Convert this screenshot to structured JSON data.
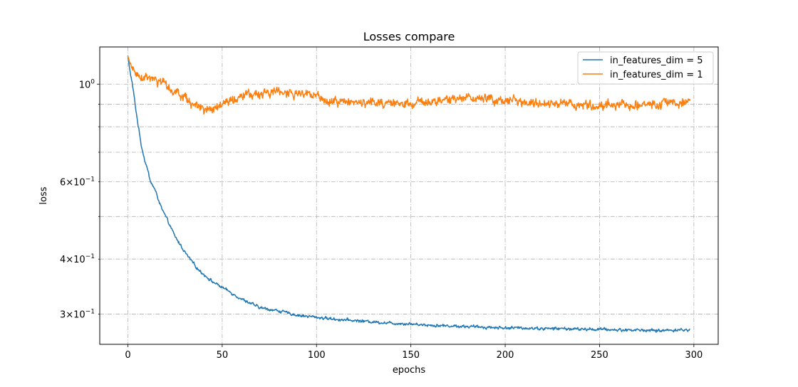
{
  "chart_data": {
    "type": "line",
    "title": "Losses compare",
    "xlabel": "epochs",
    "ylabel": "loss",
    "xlim": [
      -14.9,
      312.9
    ],
    "ylim": [
      0.256,
      1.215
    ],
    "yscale": "log",
    "grid": true,
    "legend_position": "top-right",
    "x_ticks": [
      {
        "value": 0,
        "label": "0"
      },
      {
        "value": 50,
        "label": "50"
      },
      {
        "value": 100,
        "label": "100"
      },
      {
        "value": 150,
        "label": "150"
      },
      {
        "value": 200,
        "label": "200"
      },
      {
        "value": 250,
        "label": "250"
      },
      {
        "value": 300,
        "label": "300"
      }
    ],
    "y_major_ticks": [
      {
        "value": 1.0,
        "base": "10",
        "exp": "0"
      }
    ],
    "y_minor_ticks": [
      {
        "value": 0.3,
        "mant": "3",
        "base": "10",
        "exp": "−1"
      },
      {
        "value": 0.4,
        "mant": "4",
        "base": "10",
        "exp": "−1"
      },
      {
        "value": 0.5,
        "mant": "",
        "base": "",
        "exp": ""
      },
      {
        "value": 0.6,
        "mant": "6",
        "base": "10",
        "exp": "−1"
      },
      {
        "value": 0.7,
        "mant": "",
        "base": "",
        "exp": ""
      },
      {
        "value": 0.8,
        "mant": "",
        "base": "",
        "exp": ""
      },
      {
        "value": 0.9,
        "mant": "",
        "base": "",
        "exp": ""
      }
    ],
    "series": [
      {
        "name": "in_features_dim = 5",
        "color": "#1f77b4",
        "x": [
          0,
          1,
          2,
          3,
          4,
          5,
          6,
          7,
          8,
          9,
          10,
          12,
          14,
          16,
          18,
          20,
          22,
          25,
          28,
          31,
          34,
          37,
          40,
          45,
          50,
          55,
          60,
          70,
          80,
          90,
          100,
          110,
          120,
          130,
          140,
          150,
          160,
          170,
          180,
          190,
          200,
          210,
          220,
          230,
          240,
          250,
          260,
          270,
          280,
          290,
          298
        ],
        "y": [
          1.16,
          1.08,
          1.02,
          0.96,
          0.89,
          0.83,
          0.78,
          0.73,
          0.7,
          0.67,
          0.65,
          0.6,
          0.58,
          0.55,
          0.52,
          0.5,
          0.48,
          0.45,
          0.43,
          0.41,
          0.395,
          0.38,
          0.37,
          0.355,
          0.345,
          0.335,
          0.325,
          0.31,
          0.305,
          0.298,
          0.295,
          0.292,
          0.29,
          0.288,
          0.286,
          0.285,
          0.283,
          0.282,
          0.281,
          0.28,
          0.279,
          0.279,
          0.278,
          0.278,
          0.277,
          0.277,
          0.276,
          0.276,
          0.275,
          0.276,
          0.276
        ]
      },
      {
        "name": "in_features_dim = 1",
        "color": "#ff7f0e",
        "x": [
          0,
          1,
          2,
          4,
          6,
          8,
          10,
          14,
          18,
          22,
          26,
          30,
          34,
          38,
          40,
          43,
          46,
          50,
          55,
          60,
          65,
          70,
          75,
          80,
          85,
          90,
          95,
          100,
          110,
          120,
          130,
          140,
          150,
          160,
          170,
          180,
          190,
          200,
          210,
          220,
          230,
          240,
          250,
          260,
          270,
          280,
          290,
          295,
          298
        ],
        "y": [
          1.16,
          1.12,
          1.09,
          1.06,
          1.05,
          1.04,
          1.03,
          1.02,
          1.0,
          0.98,
          0.96,
          0.93,
          0.9,
          0.88,
          0.87,
          0.875,
          0.885,
          0.9,
          0.92,
          0.935,
          0.945,
          0.95,
          0.955,
          0.96,
          0.955,
          0.95,
          0.945,
          0.935,
          0.915,
          0.91,
          0.905,
          0.9,
          0.905,
          0.91,
          0.92,
          0.93,
          0.925,
          0.92,
          0.91,
          0.905,
          0.9,
          0.895,
          0.895,
          0.895,
          0.9,
          0.9,
          0.905,
          0.91,
          0.91
        ]
      }
    ]
  }
}
